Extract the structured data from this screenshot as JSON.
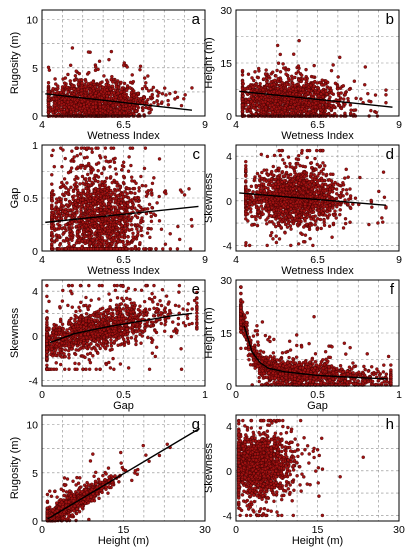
{
  "chart_data": [
    {
      "panel": "a",
      "type": "scatter",
      "xlabel": "Wetness Index",
      "ylabel": "Rugosity (m)",
      "xlim": [
        4,
        9
      ],
      "ylim": [
        0,
        11
      ],
      "xticks": [
        4,
        6.5,
        9
      ],
      "yticks": [
        0,
        5,
        10
      ],
      "grid": true,
      "fit": {
        "type": "linear",
        "x": [
          4.1,
          8.6
        ],
        "y": [
          2.3,
          0.6
        ]
      },
      "points": {
        "distribution": "cloud",
        "count": 1500,
        "x_center": 5.6,
        "x_spread": 0.75,
        "x_range": [
          4.2,
          8.6
        ],
        "y_center": 1.4,
        "y_spread": 1.0,
        "y_range": [
          0,
          10
        ]
      }
    },
    {
      "panel": "b",
      "type": "scatter",
      "xlabel": "Wetness Index",
      "ylabel": "Height (m)",
      "xlim": [
        4,
        9
      ],
      "ylim": [
        0,
        30
      ],
      "xticks": [
        4,
        6.5,
        9
      ],
      "yticks": [
        0,
        15,
        30
      ],
      "grid": true,
      "fit": {
        "type": "linear",
        "x": [
          4.1,
          8.8
        ],
        "y": [
          7,
          2.5
        ]
      },
      "points": {
        "distribution": "cloud",
        "count": 1500,
        "x_center": 5.6,
        "x_spread": 0.75,
        "x_range": [
          4.2,
          8.6
        ],
        "y_center": 4.5,
        "y_spread": 3.0,
        "y_range": [
          0,
          28
        ]
      }
    },
    {
      "panel": "c",
      "type": "scatter",
      "xlabel": "Wetness Index",
      "ylabel": "Gap",
      "xlim": [
        4,
        9
      ],
      "ylim": [
        0,
        1
      ],
      "xticks": [
        4,
        6.5,
        9
      ],
      "yticks": [
        0,
        0.5,
        1
      ],
      "grid": true,
      "fit": {
        "type": "linear",
        "x": [
          4.1,
          8.8
        ],
        "y": [
          0.27,
          0.42
        ]
      },
      "points": {
        "distribution": "cloud",
        "count": 1500,
        "x_center": 5.7,
        "x_spread": 0.7,
        "x_range": [
          4.3,
          8.6
        ],
        "y_center": 0.32,
        "y_spread": 0.22,
        "y_range": [
          0.02,
          0.97
        ]
      }
    },
    {
      "panel": "d",
      "type": "scatter",
      "xlabel": "Wetness Index",
      "ylabel": "Skewness",
      "xlim": [
        4,
        9
      ],
      "ylim": [
        -4.5,
        5
      ],
      "xticks": [
        4,
        6.5,
        9
      ],
      "yticks": [
        -4,
        0,
        4
      ],
      "grid": true,
      "fit": {
        "type": "linear",
        "x": [
          4.1,
          8.6
        ],
        "y": [
          0.7,
          -0.4
        ]
      },
      "points": {
        "distribution": "cloud",
        "count": 1500,
        "x_center": 5.7,
        "x_spread": 0.7,
        "x_range": [
          4.3,
          8.6
        ],
        "y_center": 0.3,
        "y_spread": 1.1,
        "y_range": [
          -4,
          4.5
        ]
      }
    },
    {
      "panel": "e",
      "type": "scatter",
      "xlabel": "Gap",
      "ylabel": "Skewness",
      "xlim": [
        0,
        1
      ],
      "ylim": [
        -4.5,
        5
      ],
      "xticks": [
        0,
        0.5,
        1
      ],
      "yticks": [
        -4,
        0,
        4
      ],
      "grid": true,
      "fit": {
        "type": "curve",
        "x": [
          0.05,
          0.2,
          0.4,
          0.6,
          0.8,
          0.92
        ],
        "y": [
          -0.6,
          0.2,
          0.8,
          1.3,
          1.8,
          2.0
        ]
      },
      "points": {
        "distribution": "follow_fit",
        "count": 1400,
        "x_center": 0.3,
        "x_spread": 0.22,
        "x_range": [
          0.03,
          0.95
        ],
        "y_spread": 0.8,
        "y_range": [
          -3,
          4.5
        ]
      }
    },
    {
      "panel": "f",
      "type": "scatter",
      "xlabel": "Gap",
      "ylabel": "Height (m)",
      "xlim": [
        0,
        1
      ],
      "ylim": [
        0,
        30
      ],
      "xticks": [
        0,
        0.5,
        1
      ],
      "yticks": [
        0,
        15,
        30
      ],
      "grid": true,
      "fit": {
        "type": "curve",
        "x": [
          0.05,
          0.1,
          0.15,
          0.2,
          0.3,
          0.5,
          0.7,
          0.93
        ],
        "y": [
          17,
          9.5,
          6.5,
          5,
          4,
          3,
          2.5,
          2
        ]
      },
      "points": {
        "distribution": "follow_fit",
        "count": 1500,
        "x_center": 0.35,
        "x_spread": 0.24,
        "x_range": [
          0.03,
          0.95
        ],
        "y_spread": 1.5,
        "y_range": [
          0.3,
          28
        ]
      }
    },
    {
      "panel": "g",
      "type": "scatter",
      "xlabel": "Height (m)",
      "ylabel": "Rugosity (m)",
      "xlim": [
        0,
        30
      ],
      "ylim": [
        0,
        11
      ],
      "xticks": [
        0,
        15,
        30
      ],
      "yticks": [
        0,
        5,
        10
      ],
      "grid": true,
      "fit": {
        "type": "linear",
        "x": [
          1,
          29
        ],
        "y": [
          0.2,
          9.6
        ]
      },
      "points": {
        "distribution": "follow_fit",
        "count": 1500,
        "x_center": 4.5,
        "x_spread": 3.5,
        "x_range": [
          1,
          29
        ],
        "y_spread": 0.35,
        "y_range": [
          0.05,
          10.5
        ]
      }
    },
    {
      "panel": "h",
      "type": "scatter",
      "xlabel": "Height (m)",
      "ylabel": "Skewness",
      "xlim": [
        0,
        30
      ],
      "ylim": [
        -4.5,
        5
      ],
      "xticks": [
        0,
        15,
        30
      ],
      "yticks": [
        -4,
        0,
        4
      ],
      "grid": true,
      "fit": null,
      "points": {
        "distribution": "cloud",
        "count": 1500,
        "x_center": 4.0,
        "x_spread": 2.8,
        "x_range": [
          0.5,
          29
        ],
        "y_center": 0.5,
        "y_spread": 1.3,
        "y_range": [
          -4,
          4.5
        ]
      }
    }
  ]
}
